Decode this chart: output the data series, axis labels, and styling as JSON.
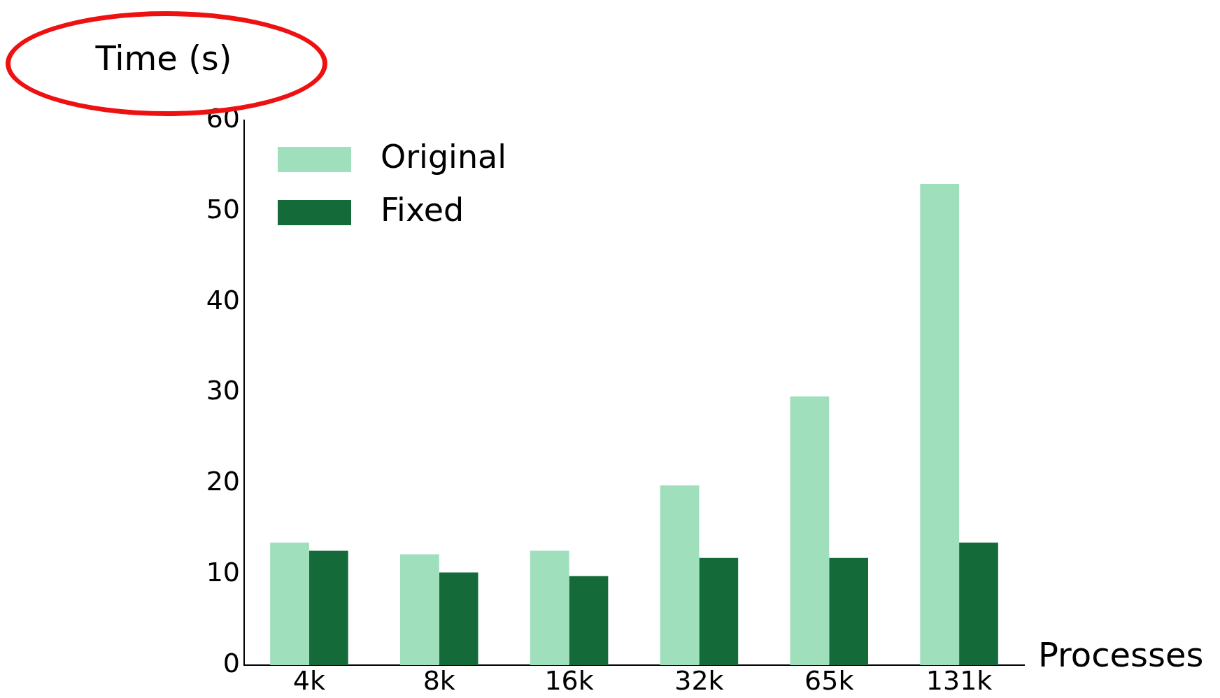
{
  "chart_data": {
    "type": "bar",
    "ylabel": "Time (s)",
    "xlabel": "Processes",
    "categories": [
      "4k",
      "8k",
      "16k",
      "32k",
      "65k",
      "131k"
    ],
    "series": [
      {
        "name": "Original",
        "color": "#a0dfbb",
        "values": [
          13.5,
          12.2,
          12.6,
          19.8,
          29.6,
          53.0
        ]
      },
      {
        "name": "Fixed",
        "color": "#156a3a",
        "values": [
          12.6,
          10.2,
          9.8,
          11.8,
          11.8,
          13.5
        ]
      }
    ],
    "ylim": [
      0,
      60
    ],
    "yticks": [
      0,
      10,
      20,
      30,
      40,
      50,
      60
    ],
    "grid": false,
    "legend": "top left"
  }
}
